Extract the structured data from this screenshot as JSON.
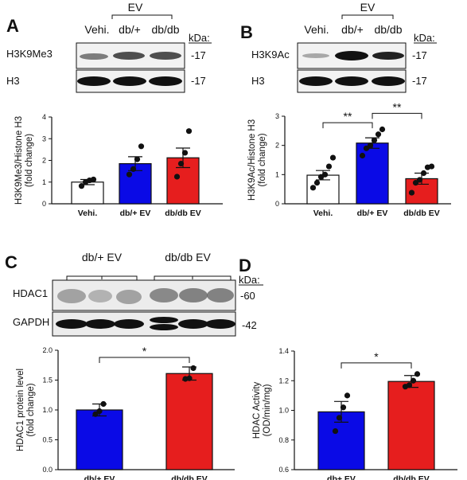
{
  "blots": {
    "a": {
      "letter": "A",
      "group_label": "EV",
      "lanes": [
        "Vehi.",
        "db/+",
        "db/db"
      ],
      "kda_label": "kDa:",
      "rows": [
        {
          "name": "H3K9Me3",
          "kda": "-17"
        },
        {
          "name": "H3",
          "kda": "-17"
        }
      ]
    },
    "b": {
      "letter": "B",
      "group_label": "EV",
      "lanes": [
        "Vehi.",
        "db/+",
        "db/db"
      ],
      "kda_label": "kDa:",
      "rows": [
        {
          "name": "H3K9Ac",
          "kda": "-17"
        },
        {
          "name": "H3",
          "kda": "-17"
        }
      ]
    },
    "c": {
      "letter": "C",
      "groups": [
        "db/+ EV",
        "db/db EV"
      ],
      "kda_label": "kDa:",
      "rows": [
        {
          "name": "HDAC1",
          "kda": "-60"
        },
        {
          "name": "GAPDH",
          "kda": "-42"
        }
      ]
    },
    "d": {
      "letter": "D"
    }
  },
  "chart_data": [
    {
      "id": "a",
      "type": "bar",
      "categories": [
        "Vehi.",
        "db/+ EV",
        "db/db EV"
      ],
      "values": [
        1.0,
        1.85,
        2.12
      ],
      "errors": [
        0.12,
        0.32,
        0.45
      ],
      "points": [
        [
          0.82,
          1.0,
          1.08,
          1.12
        ],
        [
          1.35,
          1.6,
          2.05,
          2.65
        ],
        [
          1.25,
          1.85,
          2.35,
          3.35
        ]
      ],
      "colors": [
        "#ffffff",
        "#0a0ae6",
        "#e61e1e"
      ],
      "ylabel": "H3K9Me3/Histone H3\n(fold change)",
      "ylim": [
        0,
        4
      ],
      "yticks": [
        0,
        1,
        2,
        3,
        4
      ],
      "significance": []
    },
    {
      "id": "b",
      "type": "bar",
      "categories": [
        "Vehi.",
        "db/+ EV",
        "db/db EV"
      ],
      "values": [
        0.98,
        2.08,
        0.86
      ],
      "errors": [
        0.16,
        0.18,
        0.19
      ],
      "points": [
        [
          0.55,
          0.72,
          0.92,
          1.0,
          1.28,
          1.58
        ],
        [
          1.65,
          1.9,
          2.0,
          2.18,
          2.38,
          2.55
        ],
        [
          0.38,
          0.72,
          0.82,
          1.05,
          1.25,
          1.28
        ]
      ],
      "colors": [
        "#ffffff",
        "#0a0ae6",
        "#e61e1e"
      ],
      "ylabel": "H3K9Ac/Histone H3\n(fold change)",
      "ylim": [
        0,
        3
      ],
      "yticks": [
        0,
        1,
        2,
        3
      ],
      "significance": [
        {
          "from": 0,
          "to": 1,
          "label": "**",
          "y": 2.78
        },
        {
          "from": 1,
          "to": 2,
          "label": "**",
          "y": 3.1
        }
      ]
    },
    {
      "id": "c",
      "type": "bar",
      "categories": [
        "db/+ EV",
        "db/db EV"
      ],
      "values": [
        1.0,
        1.61
      ],
      "errors": [
        0.1,
        0.11
      ],
      "points": [
        [
          0.93,
          0.98,
          1.1
        ],
        [
          1.52,
          1.53,
          1.7
        ]
      ],
      "colors": [
        "#0a0ae6",
        "#e61e1e"
      ],
      "ylabel": "HDAC1 protein level\n(fold change)",
      "ylim": [
        0,
        2.0
      ],
      "yticks": [
        0.0,
        0.5,
        1.0,
        1.5,
        2.0
      ],
      "significance": [
        {
          "from": 0,
          "to": 1,
          "label": "*",
          "y": 1.88
        }
      ]
    },
    {
      "id": "d",
      "type": "bar",
      "categories": [
        "db+ EV",
        "db/db EV"
      ],
      "values": [
        0.99,
        1.195
      ],
      "errors": [
        0.07,
        0.04
      ],
      "points": [
        [
          0.86,
          0.95,
          1.02,
          1.1
        ],
        [
          1.16,
          1.17,
          1.2,
          1.245
        ]
      ],
      "colors": [
        "#0a0ae6",
        "#e61e1e"
      ],
      "ylabel": "HDAC Activity\n(OD/min/mg)",
      "ylim": [
        0.6,
        1.4
      ],
      "yticks": [
        0.6,
        0.8,
        1.0,
        1.2,
        1.4
      ],
      "significance": [
        {
          "from": 0,
          "to": 1,
          "label": "*",
          "y": 1.32
        }
      ]
    }
  ]
}
